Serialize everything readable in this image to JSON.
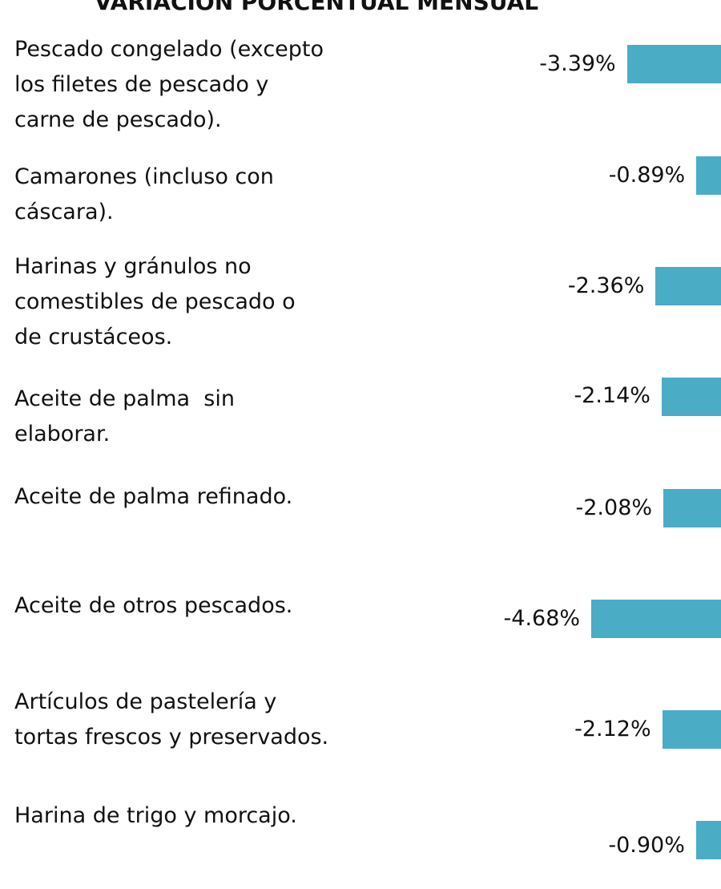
{
  "chart_data": {
    "type": "bar",
    "title": "VARIACIÓN PORCENTUAL MENSUAL",
    "categories": [
      [
        "Pescado congelado (excepto",
        "los filetes de pescado y",
        "carne de pescado)."
      ],
      [
        "Camarones (incluso con",
        "cáscara)."
      ],
      [
        "Harinas y gránulos no",
        "comestibles de pescado o",
        "de crustáceos."
      ],
      [
        "Aceite de palma  sin",
        "elaborar."
      ],
      [
        "Aceite de palma refinado."
      ],
      [
        "Aceite de otros pescados."
      ],
      [
        "Artículos de pastelería y",
        "tortas frescos y preservados."
      ],
      [
        "Harina de trigo y morcajo."
      ]
    ],
    "values": [
      -3.39,
      -0.89,
      -2.36,
      -2.14,
      -2.08,
      -4.68,
      -2.12,
      -0.9
    ],
    "value_labels": [
      "-3.39%",
      "-0.89%",
      "-2.36%",
      "-2.14%",
      "-2.08%",
      "-4.68%",
      "-2.12%",
      "-0.90%"
    ],
    "color": "#4bacc6"
  }
}
